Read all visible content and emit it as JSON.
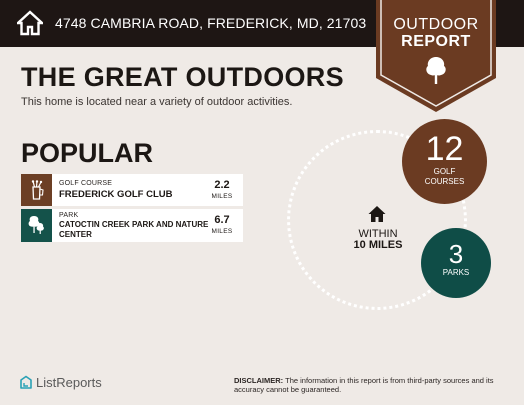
{
  "header": {
    "address": "4748 CAMBRIA ROAD, FREDERICK, MD, 21703",
    "home_icon": "home-icon"
  },
  "ribbon": {
    "line1": "OUTDOOR",
    "line2": "REPORT",
    "icon": "tree-icon",
    "color": "#6b3b22"
  },
  "main": {
    "title": "THE GREAT OUTDOORS",
    "subtitle": "This home is located near a variety of outdoor activities."
  },
  "popular": {
    "heading": "POPULAR",
    "items": [
      {
        "category": "GOLF COURSE",
        "name": "FREDERICK GOLF CLUB",
        "distance": "2.2",
        "unit": "MILES",
        "icon": "golf-bag-icon",
        "color": "#6c3f25"
      },
      {
        "category": "PARK",
        "name": "CATOCTIN CREEK PARK AND NATURE CENTER",
        "distance": "6.7",
        "unit": "MILES",
        "icon": "trees-icon",
        "color": "#14524a"
      }
    ]
  },
  "summary": {
    "within": "WITHIN",
    "radius": "10 MILES",
    "golf": {
      "count": "12",
      "label_line1": "GOLF",
      "label_line2": "COURSES",
      "color": "#6b3b22"
    },
    "parks": {
      "count": "3",
      "label": "PARKS",
      "color": "#0f4d47"
    }
  },
  "footer": {
    "brand": "ListReports",
    "disclaimer_label": "DISCLAIMER:",
    "disclaimer_text": "The information in this report is from third-party sources and its accuracy cannot be guaranteed."
  }
}
